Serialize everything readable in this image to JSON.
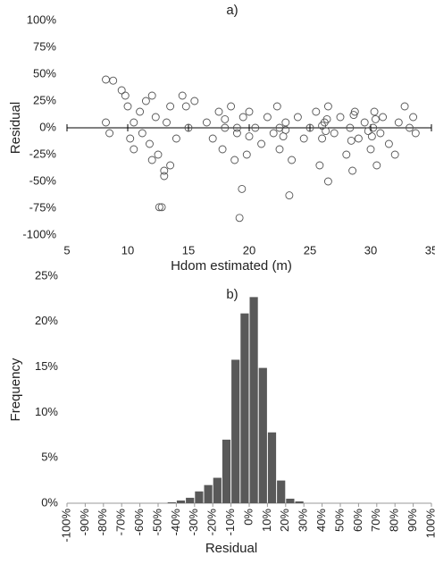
{
  "chart_data": [
    {
      "type": "scatter",
      "title": "a)",
      "xlabel": "Hdom estimated (m)",
      "ylabel": "Residual",
      "color": "#555555",
      "xlim": [
        5,
        35
      ],
      "xticks": [
        5,
        10,
        15,
        20,
        25,
        30,
        35
      ],
      "ylim": [
        -100,
        100
      ],
      "yticks": [
        {
          "value": -100,
          "label": "-100%"
        },
        {
          "value": -75,
          "label": "-75%"
        },
        {
          "value": -50,
          "label": "-50%"
        },
        {
          "value": -25,
          "label": "-25%"
        },
        {
          "value": 0,
          "label": "0%"
        },
        {
          "value": 25,
          "label": "25%"
        },
        {
          "value": 50,
          "label": "50%"
        },
        {
          "value": 75,
          "label": "75%"
        },
        {
          "value": 100,
          "label": "100%"
        }
      ],
      "x": [
        8.2,
        8.2,
        8.5,
        8.8,
        9.5,
        9.8,
        10,
        10.2,
        10.5,
        10.5,
        11,
        11.2,
        11.5,
        11.8,
        12,
        12,
        12.3,
        12.5,
        12.6,
        12.8,
        13,
        13,
        13.2,
        13.5,
        13.5,
        14,
        14.5,
        14.8,
        15,
        15.5,
        16.5,
        17,
        17.5,
        17.8,
        18,
        18.5,
        18.8,
        19,
        19.2,
        19.4,
        19.5,
        19.8,
        20,
        20.5,
        21,
        21.5,
        22,
        22.3,
        22.5,
        23,
        23.3,
        23.5,
        24,
        24.5,
        25,
        25.5,
        25.8,
        26,
        26.2,
        26.5,
        26.5,
        27,
        27.5,
        28,
        28.3,
        28.5,
        28.7,
        29,
        29.5,
        30,
        30.2,
        30.3,
        30.5,
        30.8,
        31,
        31.5,
        32,
        32.3,
        32.8,
        33.2,
        33.5,
        33.7,
        22.5,
        22.8,
        26.3,
        26.4,
        28.4,
        28.6,
        30.1,
        30.4,
        29.8,
        26,
        23,
        19,
        18,
        20
      ],
      "y": [
        45,
        5,
        -5,
        44,
        35,
        30,
        20,
        -10,
        5,
        -20,
        15,
        -5,
        25,
        -15,
        30,
        -30,
        10,
        -25,
        -74,
        -74,
        -40,
        -45,
        5,
        -35,
        20,
        -10,
        30,
        20,
        0,
        25,
        5,
        -10,
        15,
        -20,
        0,
        20,
        -30,
        -5,
        -84,
        -57,
        10,
        -25,
        15,
        0,
        -15,
        10,
        -5,
        20,
        -20,
        5,
        -63,
        -30,
        10,
        -10,
        0,
        15,
        -35,
        -10,
        5,
        -50,
        20,
        -5,
        10,
        -25,
        0,
        -40,
        15,
        -10,
        5,
        -20,
        0,
        15,
        -35,
        -5,
        10,
        -15,
        -25,
        5,
        20,
        0,
        10,
        -5,
        0,
        -8,
        -3,
        8,
        -12,
        12,
        -8,
        8,
        -3,
        2,
        -2,
        0,
        8,
        -8
      ]
    },
    {
      "type": "histogram",
      "title": "b)",
      "xlabel": "Residual",
      "ylabel": "Frequency",
      "color": "#595959",
      "xlim": [
        -100,
        100
      ],
      "xticks": [
        {
          "value": -100,
          "label": "-100%"
        },
        {
          "value": -90,
          "label": "-90%"
        },
        {
          "value": -80,
          "label": "-80%"
        },
        {
          "value": -70,
          "label": "-70%"
        },
        {
          "value": -60,
          "label": "-60%"
        },
        {
          "value": -50,
          "label": "-50%"
        },
        {
          "value": -40,
          "label": "-40%"
        },
        {
          "value": -30,
          "label": "-30%"
        },
        {
          "value": -20,
          "label": "-20%"
        },
        {
          "value": -10,
          "label": "-10%"
        },
        {
          "value": 0,
          "label": "0%"
        },
        {
          "value": 10,
          "label": "10%"
        },
        {
          "value": 20,
          "label": "20%"
        },
        {
          "value": 30,
          "label": "30%"
        },
        {
          "value": 40,
          "label": "40%"
        },
        {
          "value": 50,
          "label": "50%"
        },
        {
          "value": 60,
          "label": "60%"
        },
        {
          "value": 70,
          "label": "70%"
        },
        {
          "value": 80,
          "label": "80%"
        },
        {
          "value": 90,
          "label": "90%"
        },
        {
          "value": 100,
          "label": "100%"
        }
      ],
      "ylim": [
        0,
        25
      ],
      "yticks": [
        {
          "value": 0,
          "label": "0%"
        },
        {
          "value": 5,
          "label": "5%"
        },
        {
          "value": 10,
          "label": "10%"
        },
        {
          "value": 15,
          "label": "15%"
        },
        {
          "value": 20,
          "label": "20%"
        },
        {
          "value": 25,
          "label": "25%"
        }
      ],
      "bins": [
        -100,
        -95,
        -90,
        -85,
        -80,
        -75,
        -70,
        -65,
        -60,
        -55,
        -50,
        -45,
        -40,
        -35,
        -30,
        -25,
        -20,
        -15,
        -10,
        -5,
        0,
        5,
        10,
        15,
        20,
        25,
        30,
        35,
        40,
        45,
        50,
        55,
        60,
        65,
        70,
        75,
        80,
        85,
        90,
        95,
        100
      ],
      "values": [
        0,
        0,
        0,
        0,
        0,
        0,
        0,
        0,
        0,
        0,
        0,
        0.1,
        0.3,
        0.6,
        1.3,
        2.0,
        2.8,
        7.0,
        15.8,
        20.9,
        22.7,
        14.9,
        7.8,
        2.5,
        0.5,
        0.2,
        0,
        0,
        0,
        0,
        0,
        0,
        0,
        0,
        0,
        0,
        0,
        0,
        0,
        0
      ]
    }
  ]
}
